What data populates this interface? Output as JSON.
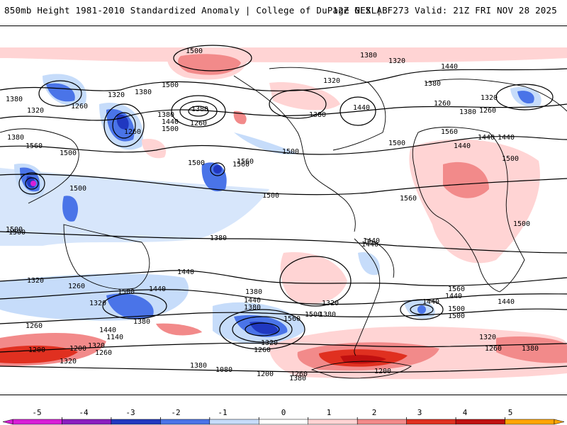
{
  "header": {
    "title_left": "850mb Height 1981-2010 Standardized Anomaly | College of DuPage NEXLAB",
    "title_right": "12Z GFS | F273 Valid: 21Z FRI NOV 28 2025"
  },
  "map": {
    "variable": "850mb Height Standardized Anomaly",
    "contour_labels": [
      "1500",
      "1380",
      "1320",
      "1440",
      "1500",
      "1380",
      "1320",
      "1260",
      "1380",
      "1320",
      "1260",
      "1440",
      "1380",
      "1500",
      "1500",
      "1260",
      "1380",
      "1560",
      "1500",
      "1500",
      "1380",
      "1320",
      "1260",
      "1440",
      "1380",
      "1320",
      "1260",
      "1380",
      "1440",
      "1500",
      "1560",
      "1440",
      "1500",
      "1500",
      "1560",
      "1560",
      "1440",
      "1500",
      "1500",
      "1500",
      "1380",
      "1440",
      "1320",
      "1260",
      "1500",
      "1440",
      "1320",
      "1380",
      "1260",
      "1440",
      "1140",
      "1200",
      "1260",
      "1320",
      "1380",
      "1440",
      "1380",
      "1320",
      "1260",
      "1080",
      "1200",
      "1260",
      "1320",
      "1380",
      "1560",
      "1440",
      "1440",
      "1500",
      "1320",
      "1260",
      "1380",
      "1200",
      "1320",
      "1380",
      "1440",
      "1500",
      "1560",
      "1440",
      "1440",
      "1500",
      "1380",
      "1500",
      "1560",
      "1200",
      "1380"
    ]
  },
  "colorbar": {
    "ticks": [
      "-5",
      "-4",
      "-3",
      "-2",
      "-1",
      "0",
      "1",
      "2",
      "3",
      "4",
      "5"
    ],
    "colors": [
      "#d81fd8",
      "#8a1ec0",
      "#2038c0",
      "#4a74e8",
      "#c6dcfa",
      "#ffffff",
      "#ffd4d4",
      "#f28a8a",
      "#e03020",
      "#c01010",
      "#ffa500"
    ]
  }
}
